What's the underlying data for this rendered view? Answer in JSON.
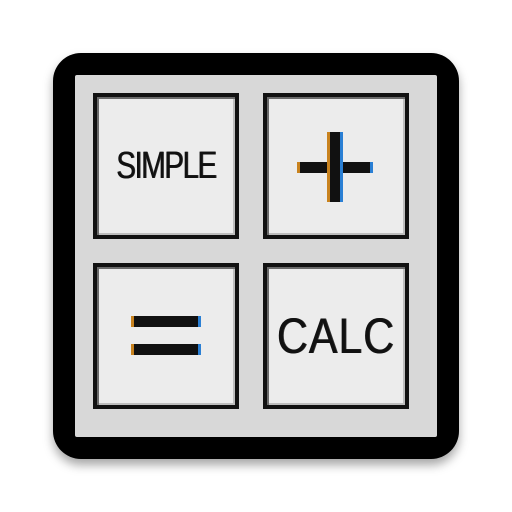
{
  "app_icon": {
    "colors": {
      "frame": "#000000",
      "panel": "#d8d8d8",
      "key_face": "#ececec",
      "glyph": "#111111",
      "fringe_left": "#c8821e",
      "fringe_right": "#2a7fd4"
    },
    "keys": [
      {
        "label": "SIMPLE",
        "kind": "text"
      },
      {
        "icon": "plus-icon",
        "kind": "symbol"
      },
      {
        "icon": "equals-icon",
        "kind": "symbol"
      },
      {
        "label": "CALC",
        "kind": "text"
      }
    ]
  }
}
